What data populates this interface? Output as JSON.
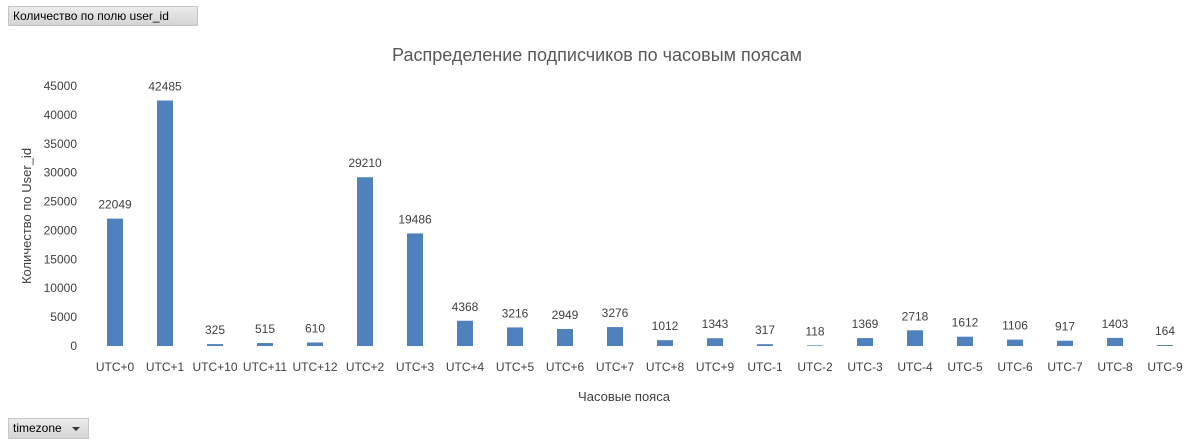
{
  "field_button": {
    "label": "Количество по полю user_id"
  },
  "filter_button": {
    "label": "timezone"
  },
  "chart_data": {
    "type": "bar",
    "title": "Распределение подписчиков по часовым поясам",
    "xlabel": "Часовые пояса",
    "ylabel": "Количество по User_id",
    "ylim": [
      0,
      45000
    ],
    "ytick_step": 5000,
    "grid": false,
    "legend": "none",
    "bar_color": "#4f81bd",
    "categories": [
      "UTC+0",
      "UTC+1",
      "UTC+10",
      "UTC+11",
      "UTC+12",
      "UTC+2",
      "UTC+3",
      "UTC+4",
      "UTC+5",
      "UTC+6",
      "UTC+7",
      "UTC+8",
      "UTC+9",
      "UTC-1",
      "UTC-2",
      "UTC-3",
      "UTC-4",
      "UTC-5",
      "UTC-6",
      "UTC-7",
      "UTC-8",
      "UTC-9"
    ],
    "values": [
      22049,
      42485,
      325,
      515,
      610,
      29210,
      19486,
      4368,
      3216,
      2949,
      3276,
      1012,
      1343,
      317,
      118,
      1369,
      2718,
      1612,
      1106,
      917,
      1403,
      164
    ]
  }
}
